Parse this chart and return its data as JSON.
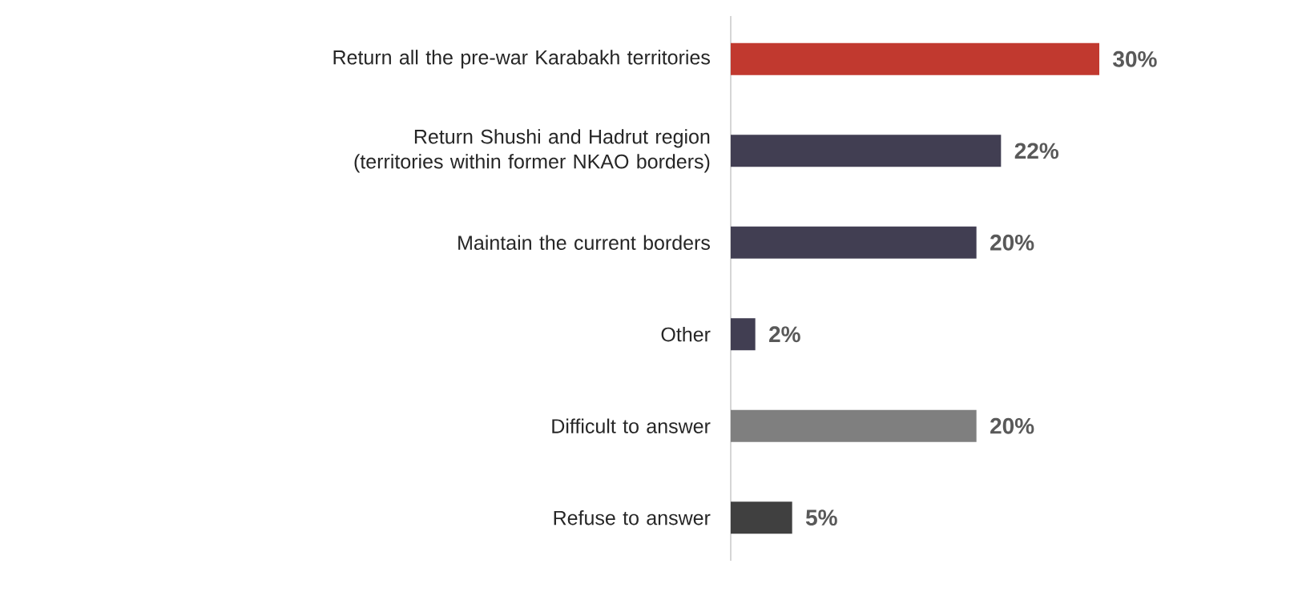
{
  "chart_data": {
    "type": "bar",
    "orientation": "horizontal",
    "categories": [
      "Return all the pre-war Karabakh territories",
      "Return Shushi and Hadrut region (territories within former NKAO borders)",
      "Maintain the current borders",
      "Other",
      "Difficult to answer",
      "Refuse to answer"
    ],
    "values": [
      30,
      22,
      20,
      2,
      20,
      5
    ],
    "colors": [
      "#c1392f",
      "#413e52",
      "#413e52",
      "#413e52",
      "#7f7f7f",
      "#404040"
    ],
    "value_labels": [
      "30%",
      "22%",
      "20%",
      "2%",
      "20%",
      "5%"
    ]
  }
}
